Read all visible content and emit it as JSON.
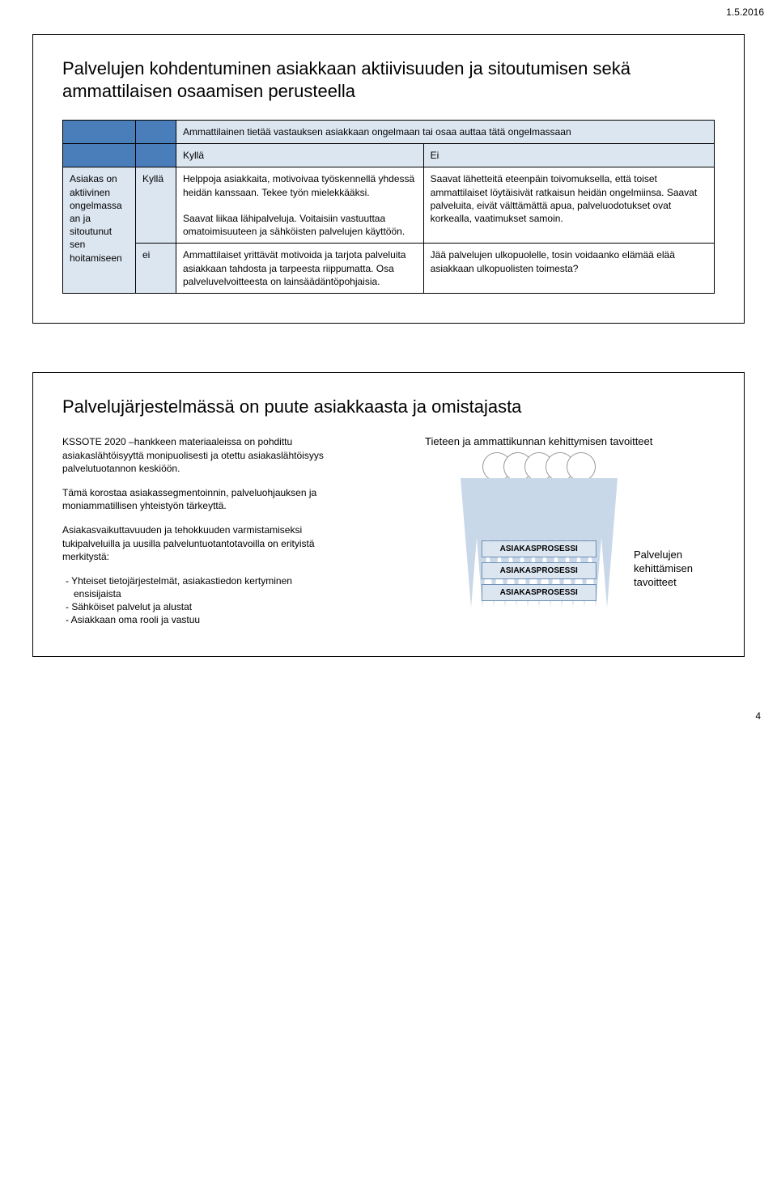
{
  "meta": {
    "date": "1.5.2016",
    "page_number": "4"
  },
  "slide1": {
    "title": "Palvelujen kohdentuminen asiakkaan aktiivisuuden ja sitoutumisen sekä ammattilaisen osaamisen perusteella",
    "col_header": "Ammattilainen tietää vastauksen asiakkaan ongelmaan tai osaa auttaa tätä ongelmassaan",
    "yes": "Kyllä",
    "no": "Ei",
    "no_lc": "ei",
    "row_header": "Asiakas on aktiivinen ongelmassa an ja sitoutunut sen hoitamiseen",
    "cell_yy": "Helppoja asiakkaita, motivoivaa työskennellä yhdessä heidän kanssaan. Tekee työn mielekkääksi.\n\nSaavat liikaa lähipalveluja. Voitaisiin vastuuttaa omatoimisuuteen ja sähköisten palvelujen käyttöön.",
    "cell_yn": "Saavat lähetteitä eteenpäin toivomuksella, että toiset ammattilaiset löytäisivät ratkaisun heidän ongelmiinsa. Saavat palveluita, eivät välttämättä apua, palveluodotukset ovat korkealla, vaatimukset samoin.",
    "cell_ny": "Ammattilaiset yrittävät motivoida ja tarjota palveluita asiakkaan tahdosta ja tarpeesta riippumatta. Osa palveluvelvoitteesta on lainsäädäntöpohjaisia.",
    "cell_nn": "Jää palvelujen ulkopuolelle, tosin voidaanko elämää elää asiakkaan ulkopuolisten toimesta?"
  },
  "slide2": {
    "title": "Palvelujärjestelmässä on puute asiakkaasta ja omistajasta",
    "para1": "KSSOTE 2020 –hankkeen materiaaleissa on pohdittu asiakaslähtöisyyttä monipuolisesti ja otettu asiakaslähtöisyys palvelutuotannon keskiöön.",
    "para2": "Tämä korostaa asiakassegmentoinnin, palveluohjauksen ja moniammatillisen yhteistyön tärkeyttä.",
    "para3_lead": "Asiakasvaikuttavuuden ja tehokkuuden varmistamiseksi tukipalveluilla ja uusilla palveluntuotantotavoilla on erityistä merkitystä:",
    "bullets": [
      "-   Yhteiset tietojärjestelmät, asiakastiedon kertyminen ensisijaista",
      "-   Sähköiset palvelut ja alustat",
      "-   Asiakkaan oma rooli ja vastuu"
    ],
    "science_label": "Tieteen ja ammattikunnan kehittymisen tavoitteet",
    "process_label": "ASIAKASPROSESSI",
    "dev_label": "Palvelujen kehittämisen tavoitteet",
    "colors": {
      "header_blue": "#4a7ebb",
      "header_light": "#dce6f1",
      "triangle_fill": "#c9d8e8",
      "proc_border": "#6d8db4"
    }
  }
}
